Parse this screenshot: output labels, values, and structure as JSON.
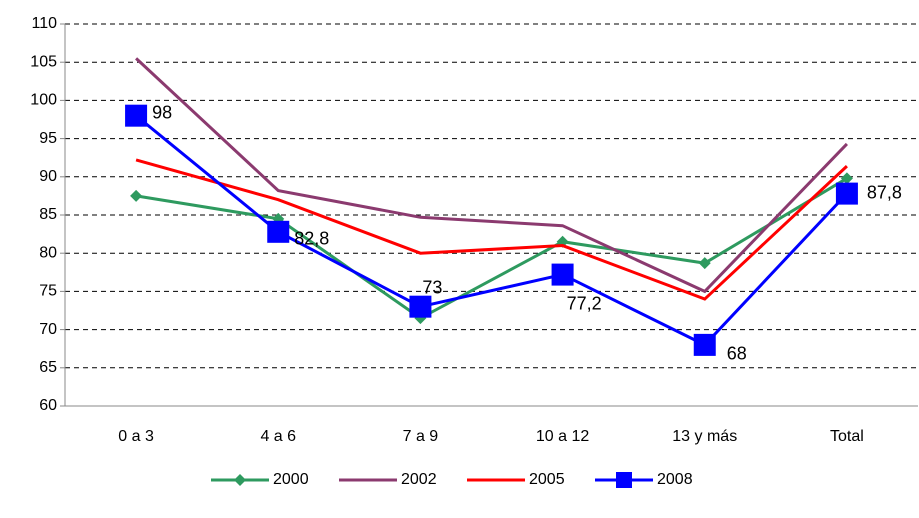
{
  "chart_data": {
    "type": "line",
    "categories": [
      "0 a 3",
      "4 a 6",
      "7 a 9",
      "10 a 12",
      "13 y más",
      "Total"
    ],
    "series": [
      {
        "name": "2000",
        "color": "#2e9a5f",
        "marker": "diamond",
        "values": [
          87.5,
          84.5,
          71.5,
          81.5,
          78.7,
          89.8
        ]
      },
      {
        "name": "2002",
        "color": "#8b3a6f",
        "marker": "none",
        "values": [
          105.5,
          88.2,
          84.7,
          83.6,
          75,
          94.3
        ]
      },
      {
        "name": "2005",
        "color": "#ff0000",
        "marker": "none",
        "values": [
          92.2,
          87,
          80,
          81,
          74,
          91.4
        ]
      },
      {
        "name": "2008",
        "color": "#0000ff",
        "marker": "square",
        "values": [
          98,
          82.8,
          73,
          77.2,
          68,
          87.8
        ],
        "value_labels": [
          "98",
          "82,8",
          "73",
          "77,2",
          "68",
          "87,8"
        ]
      }
    ],
    "ylim": [
      60,
      110
    ],
    "yticks": [
      60,
      65,
      70,
      75,
      80,
      85,
      90,
      95,
      100,
      105,
      110
    ],
    "grid": true,
    "legend": "bottom"
  }
}
